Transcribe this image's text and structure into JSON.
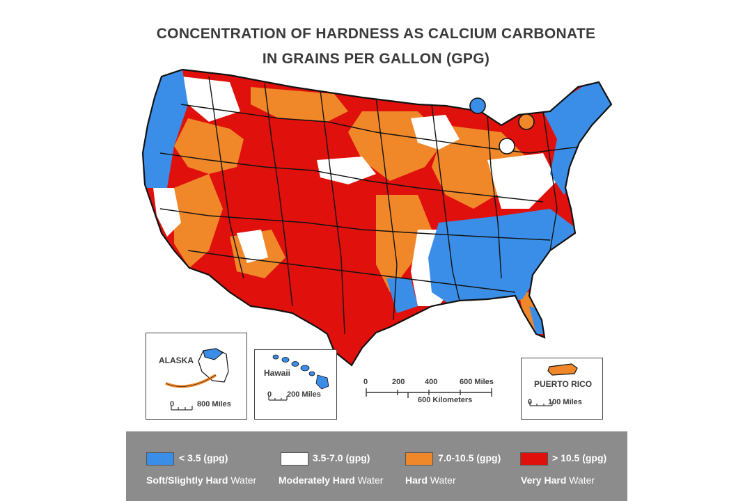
{
  "title": {
    "line1": "CONCENTRATION OF HARDNESS AS CALCIUM CARBONATE",
    "line2": "IN GRAINS PER GALLON (GPG)"
  },
  "colors": {
    "soft": "#3b8ee8",
    "moderate": "#ffffff",
    "hard": "#f0882a",
    "very_hard": "#e0100c",
    "border": "#111111",
    "legend_bg": "#8c8c8c"
  },
  "insets": {
    "alaska": {
      "label": "ALASKA",
      "scale_zero": "0",
      "scale_value": "800 Miles"
    },
    "hawaii": {
      "label": "Hawaii",
      "scale_zero": "0",
      "scale_value": "200 Miles"
    },
    "puerto_rico": {
      "label": "PUERTO RICO",
      "scale_zero": "0",
      "scale_value": "100 Miles"
    }
  },
  "main_scale": {
    "miles_ticks": [
      "0",
      "200",
      "400",
      "600 Miles"
    ],
    "kilometers_label": "600 Kilometers"
  },
  "legend": [
    {
      "color": "#3b8ee8",
      "range": "< 3.5 (gpg)",
      "desc_bold": "Soft/Slightly Hard",
      "desc_normal": " Water"
    },
    {
      "color": "#ffffff",
      "range": "3.5-7.0 (gpg)",
      "desc_bold": "Moderately Hard",
      "desc_normal": " Water"
    },
    {
      "color": "#f0882a",
      "range": "7.0-10.5 (gpg)",
      "desc_bold": "Hard",
      "desc_normal": " Water"
    },
    {
      "color": "#e0100c",
      "range": "> 10.5 (gpg)",
      "desc_bold": "Very Hard",
      "desc_normal": " Water"
    }
  ]
}
